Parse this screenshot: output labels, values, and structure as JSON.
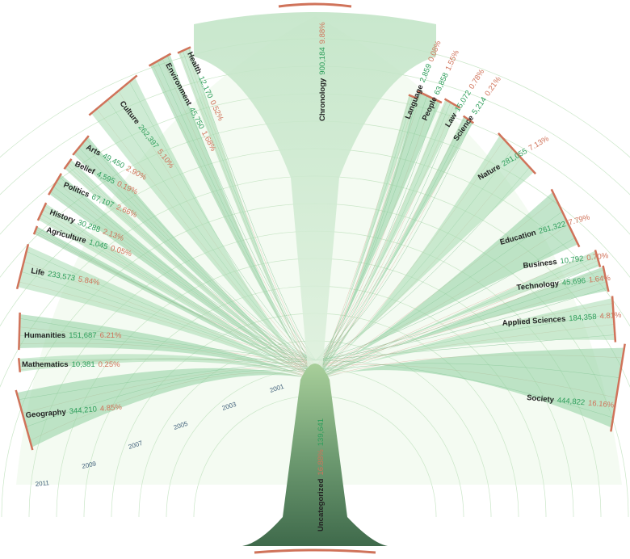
{
  "chart_data": {
    "type": "tree-fan",
    "time_axis": {
      "ticks": [
        "2001",
        "2003",
        "2005",
        "2007",
        "2009",
        "2011"
      ]
    },
    "trunk": {
      "name": "Uncategorized",
      "count": "139,641",
      "percent": "16.88%"
    },
    "branches": [
      {
        "name": "Geography",
        "count": "344,210",
        "percent": "4.85%",
        "side": "left"
      },
      {
        "name": "Mathematics",
        "count": "10,381",
        "percent": "0.25%",
        "side": "left"
      },
      {
        "name": "Humanities",
        "count": "151,687",
        "percent": "6.21%",
        "side": "left"
      },
      {
        "name": "Life",
        "count": "233,573",
        "percent": "5.84%",
        "side": "left"
      },
      {
        "name": "Agriculture",
        "count": "1,045",
        "percent": "0.05%",
        "side": "left"
      },
      {
        "name": "History",
        "count": "30,288",
        "percent": "2.13%",
        "side": "left"
      },
      {
        "name": "Politics",
        "count": "67,107",
        "percent": "2.66%",
        "side": "left"
      },
      {
        "name": "Belief",
        "count": "4,595",
        "percent": "0.19%",
        "side": "left"
      },
      {
        "name": "Arts",
        "count": "49,450",
        "percent": "2.90%",
        "side": "left"
      },
      {
        "name": "Culture",
        "count": "262,397",
        "percent": "5.10%",
        "side": "left"
      },
      {
        "name": "Environment",
        "count": "45,750",
        "percent": "1.68%",
        "side": "left"
      },
      {
        "name": "Health",
        "count": "12,170",
        "percent": "0.52%",
        "side": "left"
      },
      {
        "name": "Chronology",
        "count": "900,184",
        "percent": "9.88%",
        "side": "top"
      },
      {
        "name": "Language",
        "count": "2,859",
        "percent": "0.08%",
        "side": "right"
      },
      {
        "name": "People",
        "count": "63,858",
        "percent": "1.55%",
        "side": "right"
      },
      {
        "name": "Law",
        "count": "15,072",
        "percent": "0.78%",
        "side": "right"
      },
      {
        "name": "Science",
        "count": "5,214",
        "percent": "0.21%",
        "side": "right"
      },
      {
        "name": "Nature",
        "count": "281,055",
        "percent": "7.13%",
        "side": "right"
      },
      {
        "name": "Education",
        "count": "261,322",
        "percent": "7.79%",
        "side": "right"
      },
      {
        "name": "Business",
        "count": "10,792",
        "percent": "0.70%",
        "side": "right"
      },
      {
        "name": "Technology",
        "count": "45,696",
        "percent": "1.64%",
        "side": "right"
      },
      {
        "name": "Applied Sciences",
        "count": "184,358",
        "percent": "4.81%",
        "side": "right"
      },
      {
        "name": "Society",
        "count": "444,822",
        "percent": "16.16%",
        "side": "right"
      }
    ],
    "colors": {
      "branch": "#8fd0a0",
      "branch_dark": "#5fae74",
      "trunk": "#4a7a56",
      "accent": "#d0735a",
      "count": "#2e9e5b"
    }
  }
}
